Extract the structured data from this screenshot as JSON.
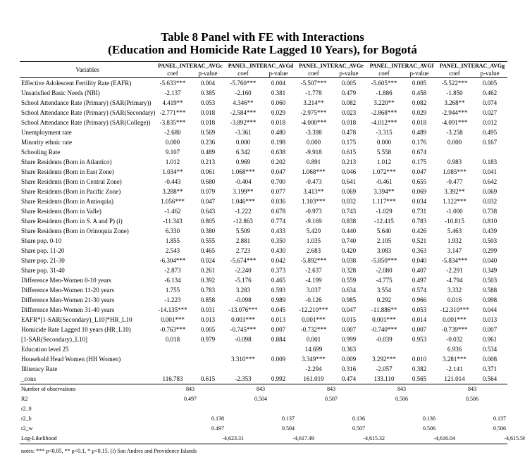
{
  "title": [
    "Table 8 Panel with FE with Interactions",
    "(Education and Homicide Rate Lagged 10 Years), for Bogotá"
  ],
  "table": {
    "variables_header": "Variables",
    "models": [
      "PANEL_INTERAC_AVGc",
      "PANEL_INTERAC_AVGd",
      "PANEL_INTERAC_AVGe",
      "PANEL_INTERAC_AVGf",
      "PANEL_INTERAC_AVGg"
    ],
    "subheaders": [
      "coef",
      "p-value"
    ],
    "rows": [
      {
        "label": "Effective Adolescent Fertility Rate (EAFR)",
        "cells": [
          "-5.633***",
          "0.004",
          "-5.760***",
          "0.004",
          "-5.507***",
          "0.005",
          "-5.605***",
          "0.005",
          "-5.522***",
          "0.005"
        ]
      },
      {
        "label": "Unsatisfied Basic Needs (NBI)",
        "cells": [
          "-2.137",
          "0.385",
          "-2.160",
          "0.381",
          "-1.778",
          "0.479",
          "-1.886",
          "0.458",
          "-1.850",
          "0.462"
        ]
      },
      {
        "label": "School Attendance Rate (Primary) (SAR(Primary))",
        "cells": [
          "4.419**",
          "0.053",
          "4.346**",
          "0.060",
          "3.214**",
          "0.082",
          "3.220**",
          "0.082",
          "3.268**",
          "0.074"
        ]
      },
      {
        "label": "School Attendance Rate (Primary) (SAR(Secondary))",
        "cells": [
          "-2.771***",
          "0.018",
          "-2.584***",
          "0.029",
          "-2.975***",
          "0.023",
          "-2.868***",
          "0.029",
          "-2.944***",
          "0.027"
        ]
      },
      {
        "label": "School Attendance Rate (Primary) (SAR(College))",
        "cells": [
          "-3.835***",
          "0.018",
          "-3.892***",
          "0.018",
          "-4.000***",
          "0.018",
          "-4.012***",
          "0.018",
          "-4.091***",
          "0.012"
        ]
      },
      {
        "label": "Unemployment rate",
        "cells": [
          "-2.680",
          "0.569",
          "-3.361",
          "0.480",
          "-3.398",
          "0.478",
          "-3.315",
          "0.489",
          "-3.258",
          "0.495"
        ]
      },
      {
        "label": "Minority ethnic rate",
        "cells": [
          "0.000",
          "0.236",
          "0.000",
          "0.198",
          "0.000",
          "0.175",
          "0.000",
          "0.176",
          "0.000",
          "0.167"
        ]
      },
      {
        "label": "Schooling Rate",
        "cells": [
          "9.107",
          "0.489",
          "6.342",
          "0.638",
          "-9.918",
          "0.615",
          "5.558",
          "0.674",
          null,
          null
        ]
      },
      {
        "label": "Share Residents (Born in Atlantico)",
        "cells": [
          "1.012",
          "0.213",
          "0.969",
          "0.202",
          "0.891",
          "0.213",
          "1.012",
          "0.175",
          "0.983",
          "0.183"
        ]
      },
      {
        "label": "Share Residents (Born in East Zone)",
        "cells": [
          "1.034**",
          "0.061",
          "1.068***",
          "0.047",
          "1.068***",
          "0.046",
          "1.072***",
          "0.047",
          "1.085***",
          "0.041"
        ]
      },
      {
        "label": "Share Residents (Born in Central Zone)",
        "cells": [
          "-0.443",
          "0.680",
          "-0.404",
          "0.700",
          "-0.473",
          "0.641",
          "-0.461",
          "0.655",
          "-0.477",
          "0.642"
        ]
      },
      {
        "label": "Share Residents (Born in Pacific Zone)",
        "cells": [
          "3.288**",
          "0.079",
          "3.199**",
          "0.077",
          "3.413**",
          "0.069",
          "3.394**",
          "0.069",
          "3.392**",
          "0.069"
        ]
      },
      {
        "label": "Share Residents (Born in Antioquia)",
        "cells": [
          "1.056***",
          "0.047",
          "1.046***",
          "0.036",
          "1.103***",
          "0.032",
          "1.117***",
          "0.034",
          "1.122***",
          "0.032"
        ]
      },
      {
        "label": "Share Residents (Born in Valle)",
        "cells": [
          "-1.462",
          "0.643",
          "-1.222",
          "0.678",
          "-0.973",
          "0.743",
          "-1.029",
          "0.731",
          "-1.000",
          "0.738"
        ]
      },
      {
        "label": "Share Residents (Born in S. A and P) (i)",
        "cells": [
          "-11.343",
          "0.805",
          "-12.863",
          "0.774",
          "-9.169",
          "0.838",
          "-12.415",
          "0.783",
          "-10.815",
          "0.810"
        ]
      },
      {
        "label": "Share Residents (Born in Orinoquia Zone)",
        "cells": [
          "6.330",
          "0.380",
          "5.509",
          "0.433",
          "5.420",
          "0.440",
          "5.640",
          "0.426",
          "5.463",
          "0.439"
        ]
      },
      {
        "label": "Share pop. 0-10",
        "cells": [
          "1.855",
          "0.555",
          "2.881",
          "0.350",
          "1.035",
          "0.740",
          "2.105",
          "0.521",
          "1.932",
          "0.503"
        ]
      },
      {
        "label": "Share pop. 11-20",
        "cells": [
          "2.543",
          "0.465",
          "2.723",
          "0.430",
          "2.683",
          "0.420",
          "3.083",
          "0.363",
          "3.147",
          "0.299"
        ]
      },
      {
        "label": "Share pop. 21-30",
        "cells": [
          "-6.304***",
          "0.024",
          "-5.674***",
          "0.042",
          "-5.892***",
          "0.038",
          "-5.850***",
          "0.040",
          "-5.834***",
          "0.040"
        ]
      },
      {
        "label": "Share pop. 31-40",
        "cells": [
          "-2.873",
          "0.261",
          "-2.240",
          "0.373",
          "-2.637",
          "0.328",
          "-2.080",
          "0.407",
          "-2.291",
          "0.349"
        ]
      },
      {
        "label": "Difference Men-Women 0-10 years",
        "cells": [
          "-6.134",
          "0.392",
          "-5.176",
          "0.465",
          "-4.199",
          "0.559",
          "-4.775",
          "0.497",
          "-4.794",
          "0.503"
        ]
      },
      {
        "label": "Difference Men-Women 11-20 years",
        "cells": [
          "1.755",
          "0.783",
          "3.283",
          "0.593",
          "3.037",
          "0.634",
          "3.554",
          "0.574",
          "3.332",
          "0.588"
        ]
      },
      {
        "label": "Difference Men-Women 21-30 years",
        "cells": [
          "-1.223",
          "0.858",
          "-0.098",
          "0.989",
          "-0.126",
          "0.985",
          "0.292",
          "0.966",
          "0.016",
          "0.998"
        ]
      },
      {
        "label": "Difference Men-Women 31-40 years",
        "cells": [
          "-14.135***",
          "0.031",
          "-13.076***",
          "0.045",
          "-12.210***",
          "0.047",
          "-11.886**",
          "0.053",
          "-12.310***",
          "0.044"
        ]
      },
      {
        "label": "EAFR*[1-SAR(Secondary)_L10]*HR_L10",
        "cells": [
          "0.001***",
          "0.013",
          "0.001***",
          "0.013",
          "0.001***",
          "0.015",
          "0.001***",
          "0.014",
          "0.001***",
          "0.013"
        ]
      },
      {
        "label": "Homicide Rate Lagged 10 years (HR_L10)",
        "cells": [
          "-0.763***",
          "0.005",
          "-0.745***",
          "0.007",
          "-0.732***",
          "0.007",
          "-0.740***",
          "0.007",
          "-0.739***",
          "0.007"
        ]
      },
      {
        "label": "[1-SAR(Secondary)_L10]",
        "cells": [
          "0.018",
          "0.979",
          "-0.098",
          "0.884",
          "0.001",
          "0.999",
          "-0.039",
          "0.953",
          "-0.032",
          "0.961"
        ]
      },
      {
        "label": "Education level 25",
        "cells": [
          null,
          null,
          null,
          null,
          "14.699",
          "0.363",
          null,
          null,
          "6.936",
          "0.534"
        ]
      },
      {
        "label": "Household Head Women (HH Women)",
        "cells": [
          null,
          null,
          "3.310***",
          "0.009",
          "3.349***",
          "0.009",
          "3.292***",
          "0.010",
          "3.281***",
          "0.008"
        ]
      },
      {
        "label": "Illiteracy Rate",
        "cells": [
          null,
          null,
          null,
          null,
          "-2.294",
          "0.316",
          "-2.057",
          "0.382",
          "-2.141",
          "0.371"
        ]
      },
      {
        "label": "_cons",
        "cells": [
          "116.783",
          "0.615",
          "-2.353",
          "0.992",
          "161.019",
          "0.474",
          "133.110",
          "0.565",
          "121.014",
          "0.564"
        ]
      }
    ],
    "stats": [
      {
        "label": "Number of observations",
        "values": [
          "843",
          "843",
          "843",
          "843",
          "843"
        ]
      },
      {
        "label": "R2",
        "values": [
          "0.497",
          "0.504",
          "0.507",
          "0.506",
          "0.506"
        ]
      },
      {
        "label": "r2_0"
      },
      {
        "label": "r2_b",
        "values": [
          "0.138",
          "0.137",
          "0.136",
          "0.136",
          "0.137"
        ]
      },
      {
        "label": "r2_w",
        "values": [
          "0.497",
          "0.504",
          "0.507",
          "0.506",
          "0.506"
        ]
      },
      {
        "label": "Log-Likelihood",
        "values": [
          "-4,623.31",
          "-4,617.49",
          "-4,615.32",
          "-4,616.04",
          "-4,615.56"
        ]
      }
    ]
  },
  "notes": "notes: *** p<0.05, ** p<0.1, * p<0.15. (i) San Andres and Providence Islands"
}
